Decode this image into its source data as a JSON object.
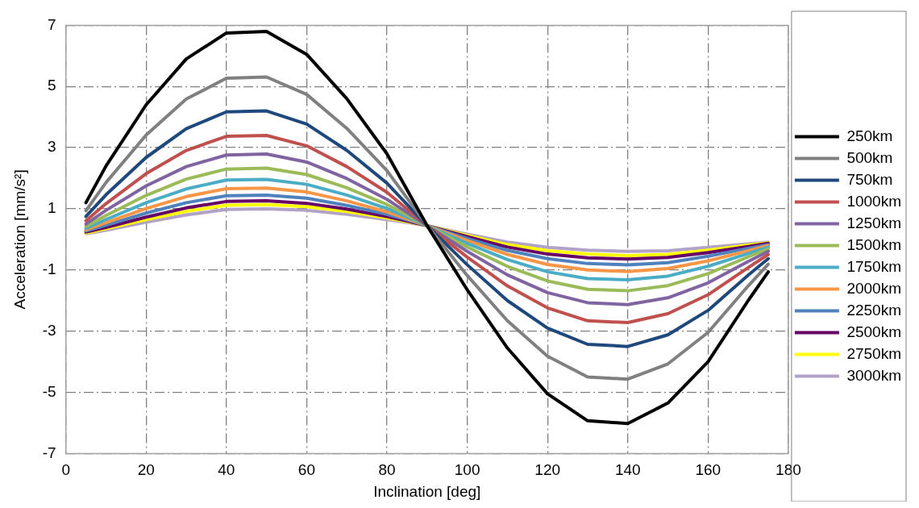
{
  "chart_data": {
    "type": "line",
    "xlabel": "Inclination [deg]",
    "ylabel": "Acceleration [mm/s²]",
    "x": [
      5,
      10,
      20,
      30,
      40,
      50,
      60,
      70,
      80,
      90,
      100,
      110,
      120,
      130,
      140,
      150,
      160,
      170,
      175
    ],
    "xlim": [
      0,
      180
    ],
    "xticks": [
      0,
      20,
      40,
      60,
      80,
      100,
      120,
      140,
      160,
      180
    ],
    "ylim": [
      -7,
      7
    ],
    "yticks": [
      -7,
      -5,
      -3,
      -1,
      1,
      3,
      5,
      7
    ],
    "grid": true,
    "legend": "right",
    "marker": "none",
    "line_style": "solid",
    "series": [
      {
        "name": "250km",
        "color": "#000000",
        "values": [
          1.2,
          2.4,
          4.4,
          5.9,
          6.75,
          6.8,
          6.05,
          4.6,
          2.8,
          0.45,
          -1.65,
          -3.55,
          -5.05,
          -5.93,
          -6.02,
          -5.35,
          -4.0,
          -2.0,
          -1.06
        ]
      },
      {
        "name": "500km",
        "color": "#808080",
        "values": [
          0.94,
          1.86,
          3.41,
          4.59,
          5.27,
          5.31,
          4.74,
          3.63,
          2.25,
          0.45,
          -1.18,
          -2.66,
          -3.82,
          -4.5,
          -4.57,
          -4.07,
          -3.04,
          -1.52,
          -0.81
        ]
      },
      {
        "name": "750km",
        "color": "#1f497d",
        "values": [
          0.75,
          1.46,
          2.68,
          3.62,
          4.17,
          4.2,
          3.77,
          2.91,
          1.84,
          0.45,
          -0.83,
          -2.0,
          -2.9,
          -3.43,
          -3.5,
          -3.12,
          -2.32,
          -1.17,
          -0.63
        ]
      },
      {
        "name": "1000km",
        "color": "#c0504d",
        "values": [
          0.61,
          1.17,
          2.15,
          2.91,
          3.37,
          3.4,
          3.06,
          2.38,
          1.54,
          0.45,
          -0.58,
          -1.52,
          -2.24,
          -2.66,
          -2.72,
          -2.43,
          -1.81,
          -0.92,
          -0.49
        ]
      },
      {
        "name": "1250km",
        "color": "#8064a2",
        "values": [
          0.5,
          0.95,
          1.75,
          2.38,
          2.76,
          2.79,
          2.53,
          1.99,
          1.31,
          0.45,
          -0.39,
          -1.16,
          -1.74,
          -2.07,
          -2.13,
          -1.91,
          -1.42,
          -0.72,
          -0.39
        ]
      },
      {
        "name": "1500km",
        "color": "#9bbb59",
        "values": [
          0.42,
          0.78,
          1.44,
          1.97,
          2.3,
          2.33,
          2.12,
          1.69,
          1.14,
          0.45,
          -0.25,
          -0.88,
          -1.36,
          -1.63,
          -1.68,
          -1.51,
          -1.12,
          -0.57,
          -0.31
        ]
      },
      {
        "name": "1750km",
        "color": "#4bacc6",
        "values": [
          0.36,
          0.65,
          1.2,
          1.65,
          1.94,
          1.96,
          1.8,
          1.45,
          1.01,
          0.45,
          -0.13,
          -0.66,
          -1.06,
          -1.28,
          -1.32,
          -1.2,
          -0.88,
          -0.46,
          -0.25
        ]
      },
      {
        "name": "2000km",
        "color": "#f79646",
        "values": [
          0.31,
          0.55,
          1.01,
          1.4,
          1.66,
          1.68,
          1.55,
          1.26,
          0.9,
          0.45,
          -0.04,
          -0.49,
          -0.82,
          -1.0,
          -1.05,
          -0.95,
          -0.7,
          -0.37,
          -0.2
        ]
      },
      {
        "name": "2250km",
        "color": "#4f81bd",
        "values": [
          0.27,
          0.46,
          0.86,
          1.2,
          1.43,
          1.45,
          1.35,
          1.11,
          0.82,
          0.45,
          0.03,
          -0.36,
          -0.63,
          -0.79,
          -0.83,
          -0.76,
          -0.55,
          -0.29,
          -0.17
        ]
      },
      {
        "name": "2500km",
        "color": "#660066",
        "values": [
          0.24,
          0.39,
          0.73,
          1.03,
          1.24,
          1.26,
          1.18,
          0.99,
          0.75,
          0.45,
          0.09,
          -0.25,
          -0.48,
          -0.6,
          -0.64,
          -0.59,
          -0.43,
          -0.23,
          -0.13
        ]
      },
      {
        "name": "2750km",
        "color": "#ffff00",
        "values": [
          0.21,
          0.35,
          0.65,
          0.92,
          1.12,
          1.14,
          1.07,
          0.91,
          0.7,
          0.45,
          0.13,
          -0.17,
          -0.37,
          -0.48,
          -0.53,
          -0.49,
          -0.35,
          -0.19,
          -0.11
        ]
      },
      {
        "name": "3000km",
        "color": "#b3a2c7",
        "values": [
          0.19,
          0.3,
          0.56,
          0.8,
          0.98,
          1.0,
          0.95,
          0.82,
          0.65,
          0.45,
          0.17,
          -0.09,
          -0.26,
          -0.35,
          -0.39,
          -0.37,
          -0.26,
          -0.15,
          -0.09
        ]
      }
    ]
  }
}
